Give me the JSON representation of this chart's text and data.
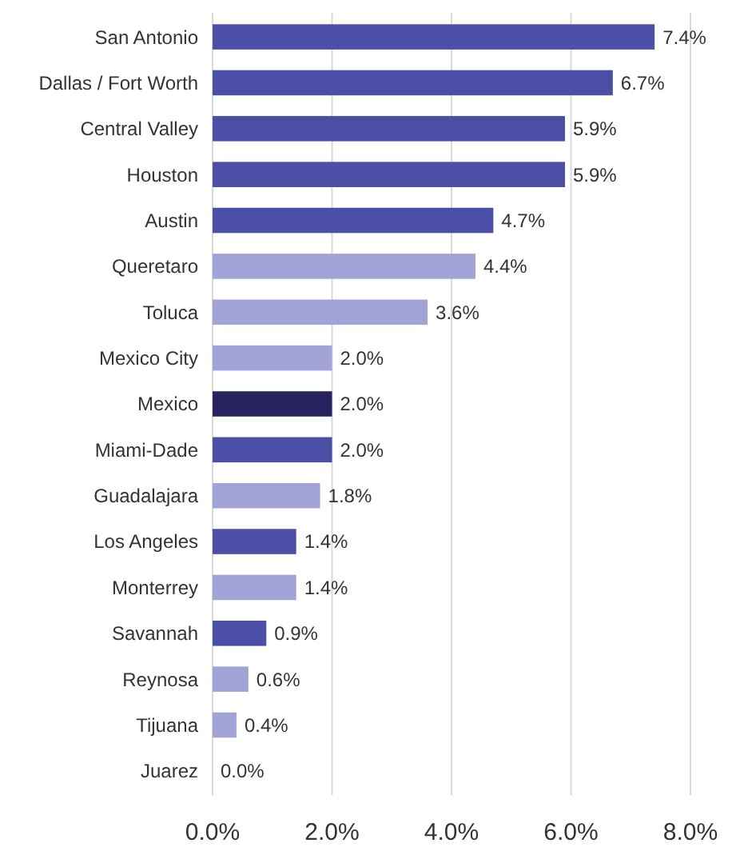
{
  "chart_data": {
    "type": "bar",
    "orientation": "horizontal",
    "categories": [
      "San Antonio",
      "Dallas / Fort Worth",
      "Central Valley",
      "Houston",
      "Austin",
      "Queretaro",
      "Toluca",
      "Mexico City",
      "Mexico",
      "Miami-Dade",
      "Guadalajara",
      "Los Angeles",
      "Monterrey",
      "Savannah",
      "Reynosa",
      "Tijuana",
      "Juarez"
    ],
    "values": [
      7.4,
      6.7,
      5.9,
      5.9,
      4.7,
      4.4,
      3.6,
      2.0,
      2.0,
      2.0,
      1.8,
      1.4,
      1.4,
      0.9,
      0.6,
      0.4,
      0.0
    ],
    "colors": [
      "#4b4fa6",
      "#4b4fa6",
      "#4b4fa6",
      "#4b4fa6",
      "#4b4fa6",
      "#a2a4d8",
      "#a2a4d8",
      "#a2a4d8",
      "#26235f",
      "#4b4fa6",
      "#a2a4d8",
      "#4b4fa6",
      "#a2a4d8",
      "#4b4fa6",
      "#a2a4d8",
      "#a2a4d8",
      "#a2a4d8"
    ],
    "value_labels": [
      "7.4%",
      "6.7%",
      "5.9%",
      "5.9%",
      "4.7%",
      "4.4%",
      "3.6%",
      "2.0%",
      "2.0%",
      "2.0%",
      "1.8%",
      "1.4%",
      "1.4%",
      "0.9%",
      "0.6%",
      "0.4%",
      "0.0%"
    ],
    "xlim": [
      0,
      8
    ],
    "xticks": [
      {
        "value": 0,
        "label": "0.0%"
      },
      {
        "value": 2,
        "label": "2.0%"
      },
      {
        "value": 4,
        "label": "4.0%"
      },
      {
        "value": 6,
        "label": "6.0%"
      },
      {
        "value": 8,
        "label": "8.0%"
      }
    ],
    "grid": "x"
  }
}
